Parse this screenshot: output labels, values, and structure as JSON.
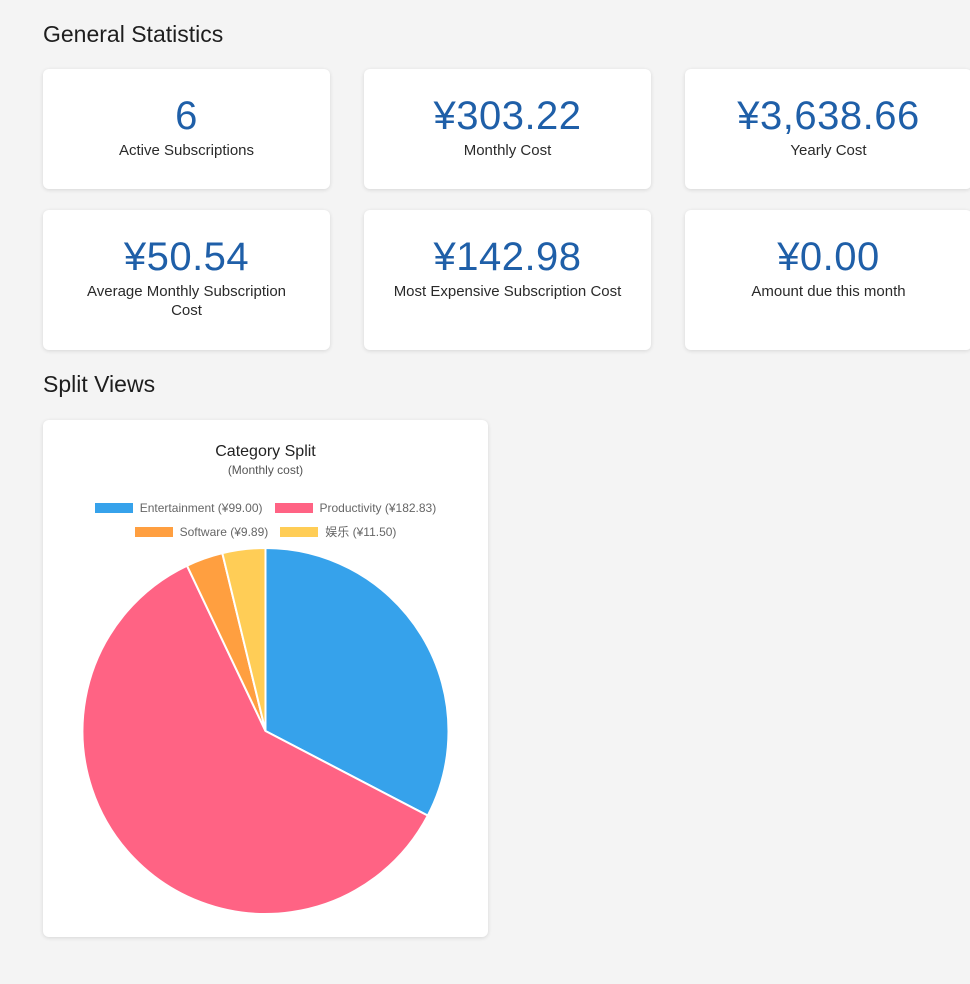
{
  "sections": {
    "general_title": "General Statistics",
    "split_title": "Split Views"
  },
  "stats": [
    {
      "value": "6",
      "label": "Active Subscriptions"
    },
    {
      "value": "¥303.22",
      "label": "Monthly Cost"
    },
    {
      "value": "¥3,638.66",
      "label": "Yearly Cost"
    },
    {
      "value": "¥50.54",
      "label": "Average Monthly Subscription Cost"
    },
    {
      "value": "¥142.98",
      "label": "Most Expensive Subscription Cost"
    },
    {
      "value": "¥0.00",
      "label": "Amount due this month"
    }
  ],
  "chart_data": {
    "type": "pie",
    "title": "Category Split",
    "subtitle": "(Monthly cost)",
    "legend_position": "top",
    "categories": [
      "Entertainment (¥99.00)",
      "Productivity (¥182.83)",
      "Software (¥9.89)",
      "娱乐 (¥11.50)"
    ],
    "values": [
      99.0,
      182.83,
      9.89,
      11.5
    ],
    "colors": [
      "#36a2eb",
      "#ff6384",
      "#ff9f40",
      "#ffcd56"
    ]
  }
}
